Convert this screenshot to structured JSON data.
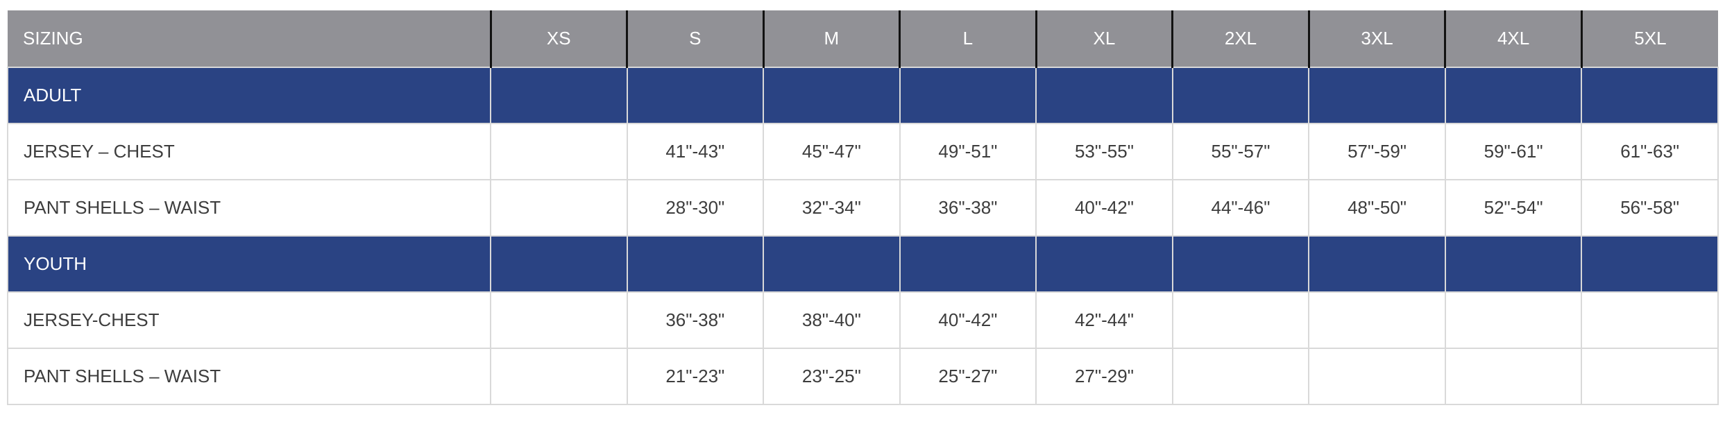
{
  "chart_data": {
    "type": "table",
    "title": "SIZING",
    "columns": [
      "SIZING",
      "XS",
      "S",
      "M",
      "L",
      "XL",
      "2XL",
      "3XL",
      "4XL",
      "5XL"
    ],
    "sections": [
      {
        "title": "ADULT",
        "rows": [
          {
            "label": "JERSEY – CHEST",
            "values": [
              "",
              "41\"-43\"",
              "45\"-47\"",
              "49\"-51\"",
              "53\"-55\"",
              "55\"-57\"",
              "57\"-59\"",
              "59\"-61\"",
              "61\"-63\""
            ]
          },
          {
            "label": "PANT SHELLS – WAIST",
            "values": [
              "",
              "28\"-30\"",
              "32\"-34\"",
              "36\"-38\"",
              "40\"-42\"",
              "44\"-46\"",
              "48\"-50\"",
              "52\"-54\"",
              "56\"-58\""
            ]
          }
        ]
      },
      {
        "title": "YOUTH",
        "rows": [
          {
            "label": "JERSEY-CHEST",
            "values": [
              "",
              "36\"-38\"",
              "38\"-40\"",
              "40\"-42\"",
              "42\"-44\"",
              "",
              "",
              "",
              ""
            ]
          },
          {
            "label": "PANT SHELLS – WAIST",
            "values": [
              "",
              "21\"-23\"",
              "23\"-25\"",
              "25\"-27\"",
              "27\"-29\"",
              "",
              "",
              "",
              ""
            ]
          }
        ]
      }
    ]
  },
  "colors": {
    "header_bg": "#919196",
    "section_bg": "#2a4383",
    "header_divider": "#121212",
    "grid_line": "#d9d9d9",
    "text_dark": "#3d3d3d",
    "text_light": "#ffffff"
  }
}
